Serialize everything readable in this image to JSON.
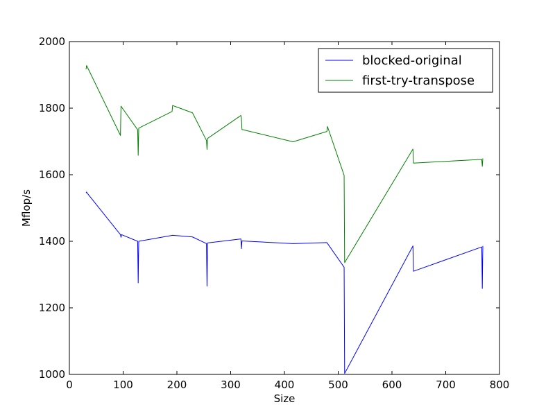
{
  "chart_data": {
    "type": "line",
    "title": "",
    "xlabel": "Size",
    "ylabel": "Mflop/s",
    "xlim": [
      0,
      800
    ],
    "ylim": [
      1000,
      2000
    ],
    "xticks": [
      0,
      100,
      200,
      300,
      400,
      500,
      600,
      700,
      800
    ],
    "yticks": [
      1000,
      1200,
      1400,
      1600,
      1800,
      2000
    ],
    "grid": false,
    "legend_position": "top-right",
    "series": [
      {
        "name": "blocked-original",
        "color": "#0000ff",
        "points": [
          [
            31,
            1545
          ],
          [
            32,
            1548
          ],
          [
            33,
            1545
          ],
          [
            95,
            1420
          ],
          [
            96,
            1412
          ],
          [
            97,
            1420
          ],
          [
            127,
            1400
          ],
          [
            128,
            1275
          ],
          [
            129,
            1400
          ],
          [
            192,
            1418
          ],
          [
            229,
            1413
          ],
          [
            255,
            1393
          ],
          [
            256,
            1265
          ],
          [
            257,
            1395
          ],
          [
            319,
            1407
          ],
          [
            320,
            1378
          ],
          [
            321,
            1401
          ],
          [
            416,
            1393
          ],
          [
            479,
            1396
          ],
          [
            511,
            1322
          ],
          [
            512,
            1003
          ],
          [
            639,
            1386
          ],
          [
            640,
            1310
          ],
          [
            767,
            1383
          ],
          [
            768,
            1258
          ],
          [
            769,
            1386
          ]
        ]
      },
      {
        "name": "first-try-transpose",
        "color": "#008000",
        "points": [
          [
            31,
            1917
          ],
          [
            32,
            1928
          ],
          [
            33,
            1925
          ],
          [
            95,
            1718
          ],
          [
            96,
            1806
          ],
          [
            127,
            1735
          ],
          [
            128,
            1658
          ],
          [
            129,
            1740
          ],
          [
            191,
            1790
          ],
          [
            192,
            1808
          ],
          [
            229,
            1786
          ],
          [
            255,
            1703
          ],
          [
            256,
            1676
          ],
          [
            257,
            1709
          ],
          [
            319,
            1778
          ],
          [
            320,
            1769
          ],
          [
            321,
            1736
          ],
          [
            416,
            1699
          ],
          [
            479,
            1730
          ],
          [
            480,
            1745
          ],
          [
            511,
            1598
          ],
          [
            512,
            1336
          ],
          [
            639,
            1677
          ],
          [
            640,
            1635
          ],
          [
            767,
            1646
          ],
          [
            768,
            1625
          ],
          [
            769,
            1649
          ]
        ]
      }
    ]
  }
}
